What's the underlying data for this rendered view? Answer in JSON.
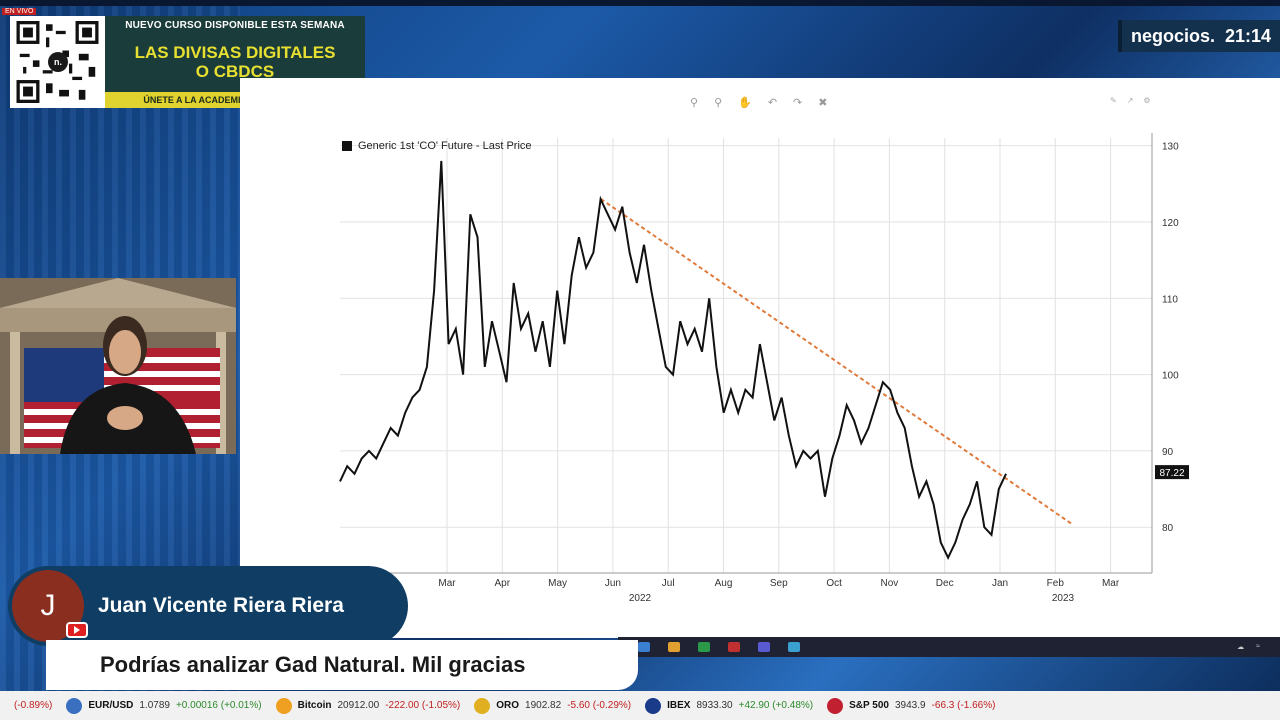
{
  "promo": {
    "live_tag": "EN VIVO",
    "top_line": "NUEVO CURSO DISPONIBLE ESTA SEMANA",
    "title_1": "LAS DIVISAS DIGITALES",
    "title_2": "O CBDCS",
    "bottom_line": "ÚNETE A LA ACADEMIA DE NEGOCIOS TV",
    "qr_badge": "n."
  },
  "logo": {
    "name": "negocios.",
    "time": "21:14"
  },
  "chart_data": {
    "type": "line",
    "legend": "Generic 1st 'CO' Future - Last Price",
    "y_ticks": [
      130,
      120,
      110,
      100,
      90,
      80
    ],
    "ylim": [
      74,
      131
    ],
    "x_ticks": [
      "Mar",
      "Apr",
      "May",
      "Jun",
      "Jul",
      "Aug",
      "Sep",
      "Oct",
      "Nov",
      "Dec",
      "Jan",
      "Feb",
      "Mar"
    ],
    "year_labels": [
      "2022",
      "2023"
    ],
    "last_price_label": "87.22",
    "series": [
      {
        "values": [
          86,
          88,
          87,
          89,
          90,
          89,
          91,
          93,
          92,
          95,
          97,
          98,
          101,
          111,
          128,
          104,
          106,
          100,
          121,
          118,
          101,
          107,
          103,
          99,
          112,
          106,
          108,
          103,
          107,
          101,
          111,
          104,
          113,
          118,
          114,
          116,
          123,
          121,
          119,
          122,
          116,
          112,
          117,
          111,
          106,
          101,
          100,
          107,
          104,
          106,
          103,
          110,
          101,
          95,
          98,
          95,
          98,
          97,
          104,
          99,
          94,
          97,
          92,
          88,
          90,
          89,
          90,
          84,
          89,
          92,
          96,
          94,
          91,
          93,
          96,
          99,
          98,
          95,
          93,
          88,
          84,
          86,
          83,
          78,
          76,
          78,
          81,
          83,
          86,
          80,
          79,
          85,
          87
        ]
      }
    ],
    "trendline": {
      "from": [
        123,
        "2022-06"
      ],
      "to": [
        80.5,
        "2023-02"
      ]
    }
  },
  "comment": {
    "avatar_letter": "J",
    "author": "Juan Vicente Riera Riera",
    "text": "Podrías analizar Gad Natural. Mil gracias"
  },
  "ticker": [
    {
      "name": "",
      "value": "",
      "change": "(-0.89%)",
      "down": true,
      "color": "#888888"
    },
    {
      "name": "EUR/USD",
      "value": "1.0789",
      "change": "+0.00016 (+0.01%)",
      "down": false,
      "color": "#3a6fc0"
    },
    {
      "name": "Bitcoin",
      "value": "20912.00",
      "change": "-222.00 (-1.05%)",
      "down": true,
      "color": "#f0a020"
    },
    {
      "name": "ORO",
      "value": "1902.82",
      "change": "-5.60 (-0.29%)",
      "down": true,
      "color": "#e0b020"
    },
    {
      "name": "IBEX",
      "value": "8933.30",
      "change": "+42.90 (+0.48%)",
      "down": false,
      "color": "#1a3a8a"
    },
    {
      "name": "S&P 500",
      "value": "3943.9",
      "change": "-66.3 (-1.66%)",
      "down": true,
      "color": "#c02030"
    }
  ]
}
